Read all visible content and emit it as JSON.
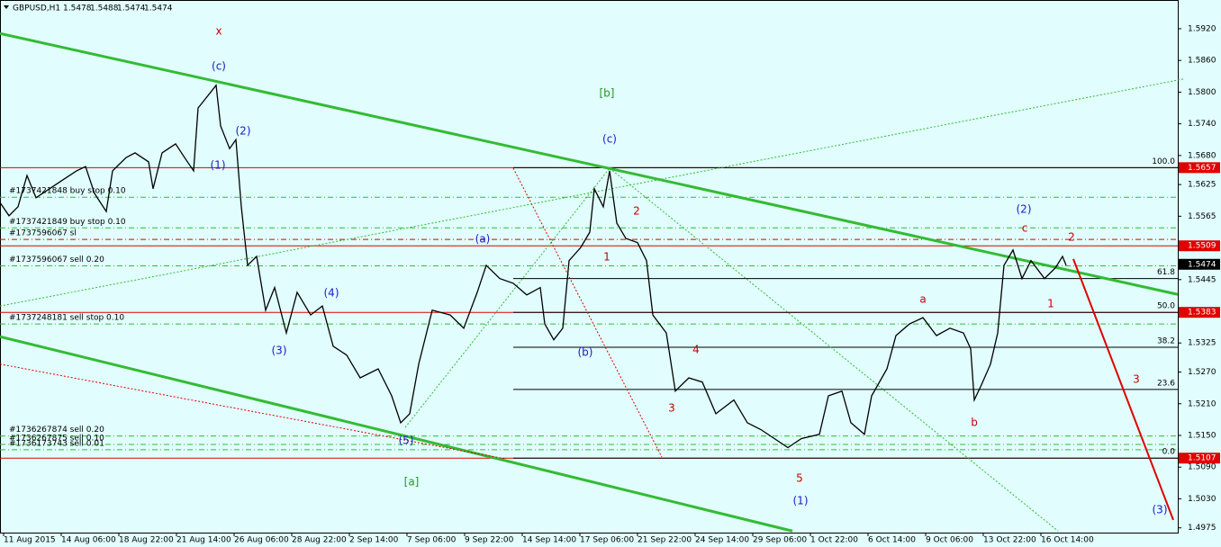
{
  "chart_data": {
    "type": "line",
    "title": "GBPUSD,H1",
    "quote": [
      1.5478,
      1.5488,
      1.5474,
      1.5474
    ],
    "x": [
      -4,
      6,
      16,
      26,
      36,
      51,
      66,
      81,
      91,
      101,
      114,
      121,
      136,
      146,
      161,
      166,
      176,
      191,
      201,
      211,
      216,
      224,
      236,
      241,
      251,
      258,
      264,
      271,
      281,
      291,
      301,
      314,
      326,
      341,
      354,
      366,
      381,
      396,
      416,
      431,
      441,
      451,
      461,
      476,
      496,
      511,
      526,
      536,
      551,
      566,
      581,
      596,
      601,
      611,
      621,
      628,
      641,
      651,
      656,
      666,
      673,
      681,
      691,
      704,
      714,
      721,
      736,
      746,
      761,
      776,
      791,
      811,
      826,
      841,
      856,
      871,
      886,
      906,
      916,
      931,
      941,
      956,
      964,
      981,
      991,
      1006,
      1021,
      1036,
      1051,
      1066,
      1074,
      1078,
      1086,
      1096,
      1104,
      1111,
      1121,
      1131,
      1141,
      1156,
      1168,
      1176,
      1180
    ],
    "values": [
      1.5591,
      1.5566,
      1.5583,
      1.5642,
      1.56,
      1.5617,
      1.5634,
      1.5651,
      1.5659,
      1.5608,
      1.5574,
      1.5651,
      1.5676,
      1.5685,
      1.5668,
      1.5617,
      1.5685,
      1.5702,
      1.5676,
      1.5651,
      1.577,
      1.5787,
      1.5813,
      1.5736,
      1.5693,
      1.571,
      1.5583,
      1.5472,
      1.5489,
      1.5387,
      1.543,
      1.5344,
      1.5421,
      1.5378,
      1.5395,
      1.5319,
      1.5302,
      1.5259,
      1.5276,
      1.5225,
      1.5174,
      1.5191,
      1.5285,
      1.5387,
      1.5378,
      1.5353,
      1.5421,
      1.5472,
      1.5447,
      1.5438,
      1.5416,
      1.543,
      1.5361,
      1.5331,
      1.5353,
      1.5481,
      1.5506,
      1.5535,
      1.5617,
      1.5583,
      1.5651,
      1.5552,
      1.5523,
      1.5515,
      1.5481,
      1.5378,
      1.5344,
      1.5234,
      1.5259,
      1.5251,
      1.5191,
      1.5217,
      1.5174,
      1.5161,
      1.5144,
      1.5127,
      1.5144,
      1.5152,
      1.5225,
      1.5234,
      1.5174,
      1.5152,
      1.5225,
      1.5276,
      1.5339,
      1.5361,
      1.5373,
      1.5339,
      1.5353,
      1.5344,
      1.5314,
      1.5217,
      1.5246,
      1.5285,
      1.5344,
      1.5472,
      1.5501,
      1.5447,
      1.5481,
      1.5447,
      1.5467,
      1.5489,
      1.5472
    ],
    "color": "#000000",
    "xlim": [
      -4,
      1304
    ],
    "ylim": [
      1.4966,
      1.5971
    ],
    "xticks": [
      {
        "value": 0,
        "label": "11 Aug 2015"
      },
      {
        "value": 64,
        "label": "14 Aug 06:00"
      },
      {
        "value": 128,
        "label": "18 Aug 22:00"
      },
      {
        "value": 192,
        "label": "21 Aug 14:00"
      },
      {
        "value": 256,
        "label": "26 Aug 06:00"
      },
      {
        "value": 320,
        "label": "28 Aug 22:00"
      },
      {
        "value": 384,
        "label": "2 Sep 14:00"
      },
      {
        "value": 448,
        "label": "7 Sep 06:00"
      },
      {
        "value": 512,
        "label": "9 Sep 22:00"
      },
      {
        "value": 576,
        "label": "14 Sep 14:00"
      },
      {
        "value": 640,
        "label": "17 Sep 06:00"
      },
      {
        "value": 704,
        "label": "21 Sep 22:00"
      },
      {
        "value": 768,
        "label": "24 Sep 14:00"
      },
      {
        "value": 832,
        "label": "29 Sep 06:00"
      },
      {
        "value": 896,
        "label": "1 Oct 22:00"
      },
      {
        "value": 960,
        "label": "6 Oct 14:00"
      },
      {
        "value": 1024,
        "label": "9 Oct 06:00"
      },
      {
        "value": 1088,
        "label": "13 Oct 22:00"
      },
      {
        "value": 1152,
        "label": "16 Oct 14:00"
      }
    ],
    "yticks": [
      {
        "value": 1.592,
        "label": "1.5920"
      },
      {
        "value": 1.586,
        "label": "1.5860"
      },
      {
        "value": 1.58,
        "label": "1.5800"
      },
      {
        "value": 1.574,
        "label": "1.5740"
      },
      {
        "value": 1.568,
        "label": "1.5680"
      },
      {
        "value": 1.5625,
        "label": "1.5625"
      },
      {
        "value": 1.5565,
        "label": "1.5565"
      },
      {
        "value": 1.5445,
        "label": "1.5445"
      },
      {
        "value": 1.5325,
        "label": "1.5325"
      },
      {
        "value": 1.527,
        "label": "1.5270"
      },
      {
        "value": 1.521,
        "label": "1.5210"
      },
      {
        "value": 1.515,
        "label": "1.5150"
      },
      {
        "value": 1.509,
        "label": "1.5090"
      },
      {
        "value": 1.503,
        "label": "1.5030"
      },
      {
        "value": 1.4975,
        "label": "1.4975"
      }
    ],
    "levels": [
      {
        "value": 1.5657,
        "color": "#e00000",
        "line": true
      },
      {
        "value": 1.5509,
        "color": "#e00000",
        "line": true
      },
      {
        "value": 1.5474,
        "color": "#000000",
        "line": false
      },
      {
        "value": 1.5383,
        "color": "#e00000",
        "line": true
      },
      {
        "value": 1.5107,
        "color": "#e00000",
        "line": true
      }
    ],
    "fibo": [
      {
        "value": 1.5657,
        "label": "100.0"
      },
      {
        "value": 1.5447,
        "label": "61.8"
      },
      {
        "value": 1.5383,
        "label": "50.0"
      },
      {
        "value": 1.5317,
        "label": "38.2"
      },
      {
        "value": 1.5237,
        "label": "23.6"
      },
      {
        "value": 1.5107,
        "label": "0.0"
      }
    ],
    "orders": [
      {
        "label": "#1737421848 buy stop 0.10",
        "value": 1.5601,
        "color": "#33bb33"
      },
      {
        "label": "#1737421849 buy stop 0.10",
        "value": 1.5543,
        "color": "#33bb33"
      },
      {
        "label": "#1737596067 sl",
        "value": 1.5521,
        "color": "#e00000"
      },
      {
        "label": "#1737596067 sell 0.20",
        "value": 1.5471,
        "color": "#33bb33"
      },
      {
        "label": "#1737248181 sell stop 0.10",
        "value": 1.5361,
        "color": "#33bb33"
      },
      {
        "label": "#1736267874 sell 0.20",
        "value": 1.5149,
        "color": "#33bb33"
      },
      {
        "label": "#1736267875 sell 0.10",
        "value": 1.5133,
        "color": "#33bb33"
      },
      {
        "label": "#1736173743 sell 0.01",
        "value": 1.5123,
        "color": "#33bb33"
      }
    ],
    "trendlines": [
      {
        "x": [
          -4,
          1304
        ],
        "values": [
          1.5911,
          1.5417
        ],
        "color": "#33bb33",
        "width": 3,
        "dash": "none"
      },
      {
        "x": [
          -4,
          876
        ],
        "values": [
          1.5337,
          1.4969
        ],
        "color": "#33bb33",
        "width": 3,
        "dash": "none"
      },
      {
        "x": [
          -4,
          1311
        ],
        "values": [
          1.5395,
          1.5825
        ],
        "color": "#33bb33",
        "width": 1,
        "dash": "2 2"
      },
      {
        "x": [
          566,
          731
        ],
        "values": [
          1.5656,
          1.5109
        ],
        "color": "#e00000",
        "width": 1,
        "dash": "2 2"
      },
      {
        "x": [
          673,
          1171
        ],
        "values": [
          1.5656,
          1.4969
        ],
        "color": "#33bb33",
        "width": 1,
        "dash": "2 2"
      },
      {
        "x": [
          446,
          673
        ],
        "values": [
          1.5165,
          1.5656
        ],
        "color": "#33bb33",
        "width": 1,
        "dash": "2 2"
      },
      {
        "x": [
          -4,
          556
        ],
        "values": [
          1.5285,
          1.5106
        ],
        "color": "#e00000",
        "width": 1,
        "dash": "2 2"
      },
      {
        "x": [
          1188,
          1299
        ],
        "values": [
          1.5484,
          1.499
        ],
        "color": "#e00000",
        "width": 2,
        "dash": "none"
      }
    ],
    "annotations": [
      {
        "text": "x",
        "color": "#cc0000"
      },
      {
        "text": "(c)",
        "color": "#1a1acc"
      },
      {
        "text": "(2)",
        "color": "#1a1acc"
      },
      {
        "text": "(1)",
        "color": "#1a1acc"
      },
      {
        "text": "(4)",
        "color": "#1a1acc"
      },
      {
        "text": "(3)",
        "color": "#1a1acc"
      },
      {
        "text": "(5)",
        "color": "#1a1acc"
      },
      {
        "text": "[a]",
        "color": "#229922"
      },
      {
        "text": "(a)",
        "color": "#1a1acc"
      },
      {
        "text": "(b)",
        "color": "#1a1acc"
      },
      {
        "text": "[b]",
        "color": "#229922"
      },
      {
        "text": "(c)",
        "color": "#1a1acc"
      },
      {
        "text": "1",
        "color": "#cc0000"
      },
      {
        "text": "2",
        "color": "#cc0000"
      },
      {
        "text": "4",
        "color": "#cc0000"
      },
      {
        "text": "3",
        "color": "#cc0000"
      },
      {
        "text": "5",
        "color": "#cc0000"
      },
      {
        "text": "(1)",
        "color": "#1a1acc"
      },
      {
        "text": "a",
        "color": "#cc0000"
      },
      {
        "text": "b",
        "color": "#cc0000"
      },
      {
        "text": "c",
        "color": "#cc0000"
      },
      {
        "text": "(2)",
        "color": "#1a1acc"
      },
      {
        "text": "2",
        "color": "#cc0000"
      },
      {
        "text": "1",
        "color": "#cc0000"
      },
      {
        "text": "3",
        "color": "#cc0000"
      },
      {
        "text": "(3)",
        "color": "#1a1acc"
      }
    ]
  }
}
